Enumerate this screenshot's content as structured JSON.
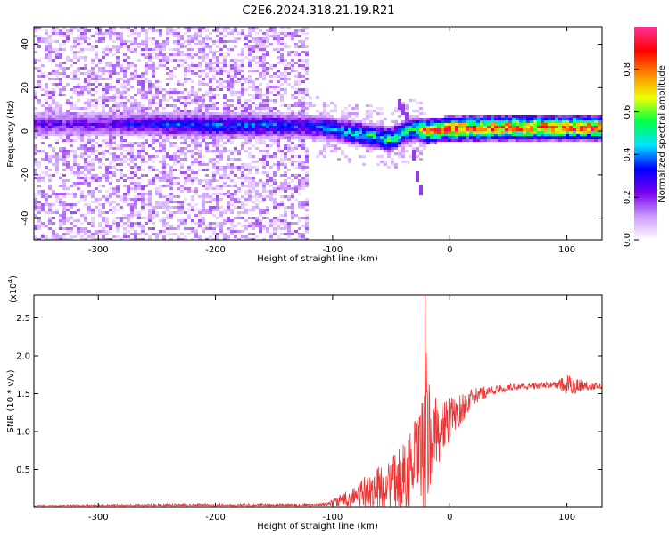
{
  "title": "C2E6.2024.318.21.19.R21",
  "chart_data": [
    {
      "type": "heatmap",
      "xlabel": "Height of straight line (km)",
      "ylabel": "Frequency (Hz)",
      "xlim": [
        -355,
        130
      ],
      "ylim": [
        -50,
        48
      ],
      "x_ticks": [
        -300,
        -200,
        -100,
        0,
        100
      ],
      "x_tick_labels": [
        "-300",
        "-200",
        "-100",
        "0",
        "100"
      ],
      "y_ticks": [
        -40,
        -20,
        0,
        20,
        40
      ],
      "y_tick_labels": [
        "-40",
        "-20",
        "0",
        "20",
        "40"
      ],
      "colorbar": {
        "label": "Normalized spectral amplitude",
        "range": [
          0,
          1
        ],
        "ticks": [
          0,
          0.2,
          0.4,
          0.6,
          0.8
        ],
        "tick_labels": [
          "0.0",
          "0.2",
          "0.4",
          "0.6",
          "0.8"
        ],
        "colors": [
          "#ffffff",
          "#cc99ff",
          "#7700ee",
          "#0000ff",
          "#00e5ff",
          "#00ff44",
          "#eeff00",
          "#ff8800",
          "#ff0000",
          "#ff3399"
        ]
      },
      "ridge": {
        "x": [
          -355,
          -300,
          -250,
          -200,
          -150,
          -120,
          -100,
          -80,
          -60,
          -50,
          -40,
          -30,
          -20,
          -10,
          0,
          50,
          100,
          130
        ],
        "frequency": [
          3,
          3,
          3,
          2.5,
          2.5,
          2,
          1,
          -1,
          -3,
          -4,
          -1,
          1,
          0,
          0.5,
          1,
          1.5,
          1.5,
          1.5
        ],
        "amplitude": [
          0.25,
          0.25,
          0.35,
          0.4,
          0.4,
          0.35,
          0.45,
          0.5,
          0.55,
          0.6,
          0.55,
          0.55,
          0.9,
          0.85,
          0.9,
          0.9,
          0.9,
          0.9
        ]
      },
      "broadband_noise_region": [
        -355,
        -120
      ],
      "secondary_track": {
        "x": [
          -45,
          -35,
          -28,
          -22
        ],
        "frequency": [
          15,
          5,
          -20,
          -32
        ]
      }
    },
    {
      "type": "line",
      "xlabel": "Height of straight line (km)",
      "ylabel": "SNR (10 * v/v)",
      "multiplier_label": "(x10",
      "multiplier_exp": "4",
      "xlim": [
        -355,
        130
      ],
      "ylim": [
        0,
        2.8
      ],
      "x_ticks": [
        -300,
        -200,
        -100,
        0,
        100
      ],
      "x_tick_labels": [
        "-300",
        "-200",
        "-100",
        "0",
        "100"
      ],
      "y_ticks": [
        0.5,
        1.0,
        1.5,
        2.0,
        2.5
      ],
      "y_tick_labels": [
        "0.5",
        "1.0",
        "1.5",
        "2.0",
        "2.5"
      ],
      "color": "#ee3333",
      "envelope": {
        "x": [
          -355,
          -250,
          -200,
          -150,
          -110,
          -100,
          -90,
          -80,
          -70,
          -60,
          -50,
          -40,
          -30,
          -25,
          -22,
          -20,
          -18,
          -15,
          -10,
          -5,
          0,
          10,
          20,
          30,
          50,
          70,
          90,
          100,
          110,
          120,
          130
        ],
        "mean": [
          0.02,
          0.03,
          0.03,
          0.03,
          0.03,
          0.06,
          0.1,
          0.15,
          0.2,
          0.25,
          0.3,
          0.4,
          0.55,
          0.65,
          0.75,
          0.85,
          0.9,
          0.95,
          1.0,
          1.1,
          1.15,
          1.3,
          1.45,
          1.52,
          1.58,
          1.6,
          1.62,
          1.6,
          1.61,
          1.6,
          1.6
        ],
        "spread": [
          0.01,
          0.02,
          0.02,
          0.02,
          0.02,
          0.05,
          0.1,
          0.15,
          0.25,
          0.3,
          0.35,
          0.45,
          0.6,
          0.7,
          0.9,
          1.2,
          0.8,
          0.6,
          0.45,
          0.35,
          0.3,
          0.2,
          0.12,
          0.08,
          0.05,
          0.04,
          0.04,
          0.15,
          0.1,
          0.05,
          0.04
        ]
      },
      "peak": {
        "x": -21,
        "y": 2.8
      }
    }
  ]
}
